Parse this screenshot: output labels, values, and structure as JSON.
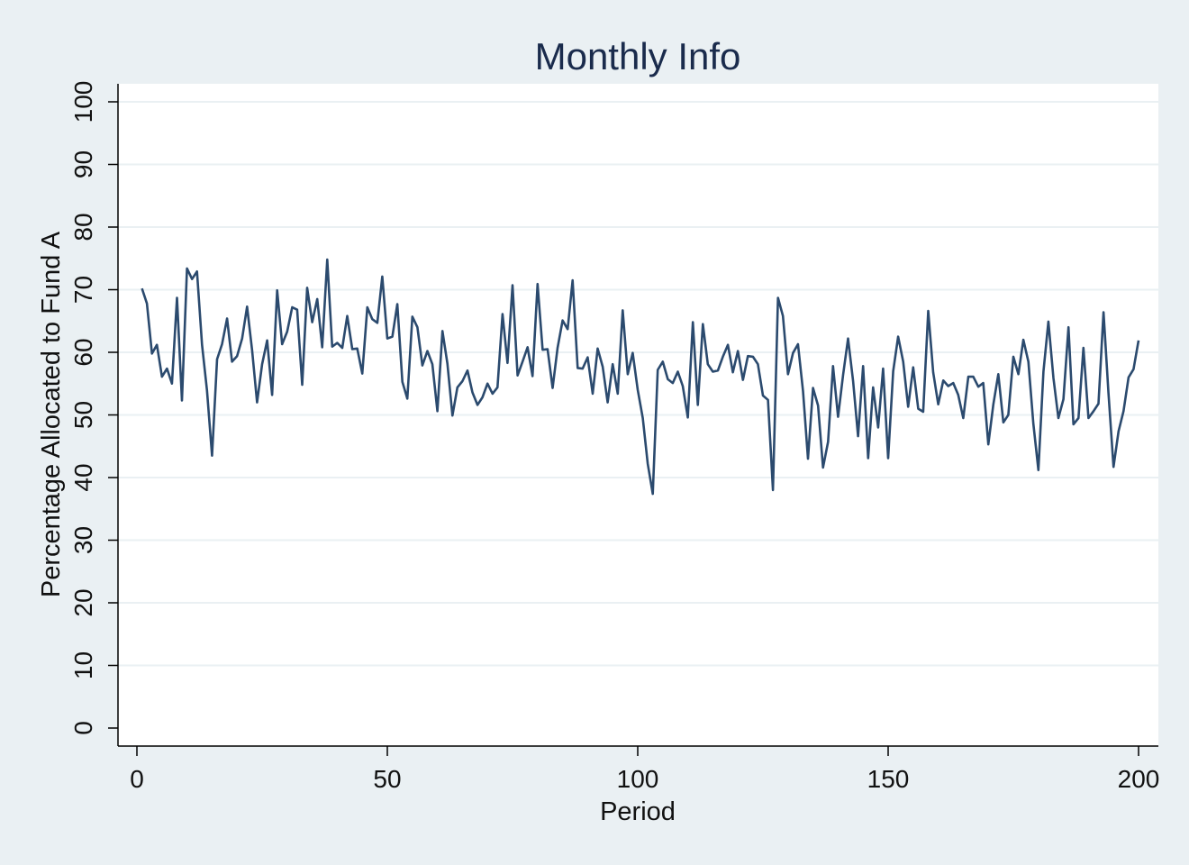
{
  "chart_data": {
    "type": "line",
    "title": "Monthly Info",
    "xlabel": "Period",
    "ylabel": "Percentage Allocated to Fund A",
    "xlim": [
      0,
      200
    ],
    "ylim": [
      0,
      100
    ],
    "xticks": [
      0,
      50,
      100,
      150,
      200
    ],
    "yticks": [
      0,
      10,
      20,
      30,
      40,
      50,
      60,
      70,
      80,
      90,
      100
    ],
    "grid": "horizontal",
    "legend": "none",
    "line_color": "#2b4a6e",
    "series": [
      {
        "x": [
          1,
          2,
          3,
          4,
          5,
          6,
          7,
          8,
          9,
          10,
          11,
          12,
          13,
          14,
          15,
          16,
          17,
          18,
          19,
          20,
          21,
          22,
          23,
          24,
          25,
          26,
          27,
          28,
          29,
          30,
          31,
          32,
          33,
          34,
          35,
          36,
          37,
          38,
          39,
          40,
          41,
          42,
          43,
          44,
          45,
          46,
          47,
          48,
          49,
          50,
          51,
          52,
          53,
          54,
          55,
          56,
          57,
          58,
          59,
          60,
          61,
          62,
          63,
          64,
          65,
          66,
          67,
          68,
          69,
          70,
          71,
          72,
          73,
          74,
          75,
          76,
          77,
          78,
          79,
          80,
          81,
          82,
          83,
          84,
          85,
          86,
          87,
          88,
          89,
          90,
          91,
          92,
          93,
          94,
          95,
          96,
          97,
          98,
          99,
          100,
          101,
          102,
          103,
          104,
          105,
          106,
          107,
          108,
          109,
          110,
          111,
          112,
          113,
          114,
          115,
          116,
          117,
          118,
          119,
          120,
          121,
          122,
          123,
          124,
          125,
          126,
          127,
          128,
          129,
          130,
          131,
          132,
          133,
          134,
          135,
          136,
          137,
          138,
          139,
          140,
          141,
          142,
          143,
          144,
          145,
          146,
          147,
          148,
          149,
          150,
          151,
          152,
          153,
          154,
          155,
          156,
          157,
          158,
          159,
          160,
          161,
          162,
          163,
          164,
          165,
          166,
          167,
          168,
          169,
          170,
          171,
          172,
          173,
          174,
          175,
          176,
          177,
          178,
          179,
          180,
          181,
          182,
          183,
          184,
          185,
          186,
          187,
          188,
          189,
          190,
          191,
          192,
          193,
          194,
          195,
          196,
          197,
          198,
          199,
          200
        ],
        "values": [
          70.2,
          67.8,
          59.8,
          61.2,
          56.1,
          57.4,
          55.0,
          68.7,
          52.3,
          73.4,
          71.7,
          72.9,
          61.2,
          53.9,
          43.5,
          58.9,
          61.3,
          65.4,
          58.5,
          59.4,
          62.2,
          67.3,
          60.3,
          52.0,
          58.1,
          61.9,
          53.2,
          69.9,
          61.3,
          63.3,
          67.2,
          66.8,
          54.8,
          70.3,
          64.8,
          68.5,
          60.8,
          74.8,
          60.9,
          61.5,
          60.7,
          65.8,
          60.5,
          60.6,
          56.6,
          67.2,
          65.3,
          64.7,
          72.1,
          62.2,
          62.5,
          67.7,
          55.3,
          52.6,
          65.7,
          64.0,
          57.9,
          60.2,
          58.1,
          50.6,
          63.4,
          58.2,
          49.9,
          54.4,
          55.4,
          57.1,
          53.6,
          51.6,
          52.8,
          55.0,
          53.4,
          54.4,
          66.1,
          58.3,
          70.7,
          56.3,
          58.5,
          60.8,
          56.2,
          70.9,
          60.4,
          60.5,
          54.3,
          60.7,
          65.1,
          63.7,
          71.5,
          57.5,
          57.4,
          59.2,
          53.4,
          60.6,
          57.7,
          52.0,
          58.1,
          53.4,
          66.7,
          56.5,
          59.9,
          54.0,
          49.5,
          42.2,
          37.4,
          57.2,
          58.5,
          55.7,
          55.1,
          56.9,
          54.6,
          49.6,
          64.8,
          51.6,
          64.5,
          58.1,
          56.9,
          57.1,
          59.3,
          61.2,
          56.8,
          60.2,
          55.6,
          59.4,
          59.3,
          58.1,
          53.1,
          52.4,
          38.0,
          68.7,
          65.8,
          56.5,
          59.9,
          61.3,
          53.8,
          43.0,
          54.3,
          51.5,
          41.6,
          45.7,
          57.8,
          49.7,
          56.4,
          62.2,
          55.4,
          46.6,
          57.8,
          43.1,
          54.4,
          48.0,
          57.4,
          43.1,
          57.0,
          62.5,
          58.5,
          51.3,
          57.6,
          51.0,
          50.5,
          66.6,
          56.8,
          51.7,
          55.5,
          54.6,
          55.1,
          53.2,
          49.5,
          56.1,
          56.1,
          54.5,
          55.1,
          45.3,
          51.7,
          56.5,
          48.8,
          50.0,
          59.3,
          56.5,
          62.0,
          58.5,
          48.6,
          41.2,
          56.9,
          64.9,
          55.9,
          49.5,
          52.5,
          64.0,
          48.5,
          49.5,
          60.7,
          49.5,
          50.6,
          51.8,
          66.4,
          53.5,
          41.7,
          47.4,
          50.6,
          56.0,
          57.3,
          61.9
        ]
      }
    ]
  }
}
